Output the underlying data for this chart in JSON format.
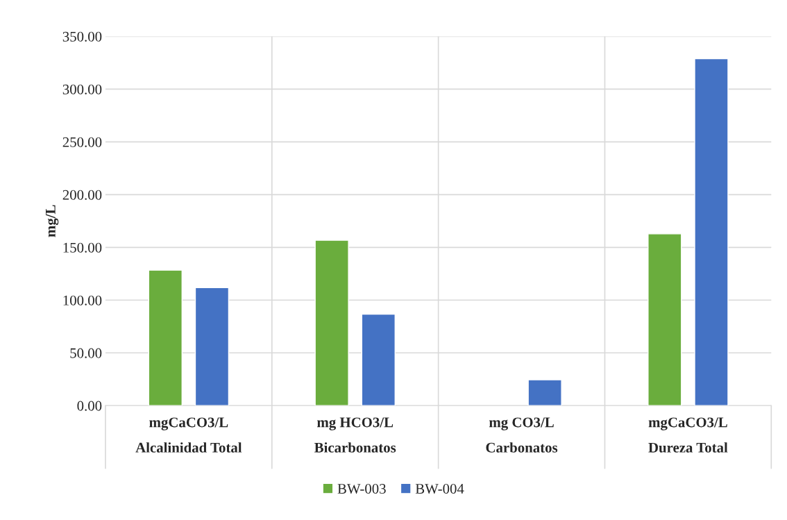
{
  "chart_data": {
    "type": "bar",
    "ylabel": "mg/L",
    "categories": [
      "mgCaCO3/L\nAlcalinidad Total",
      "mg HCO3/L\nBicarbonatos",
      "mg CO3/L\nCarbonatos",
      "mgCaCO3/L\nDureza Total"
    ],
    "series": [
      {
        "name": "BW-003",
        "color": "#6aad3d",
        "values": [
          128.4,
          156.8,
          null,
          162.8
        ]
      },
      {
        "name": "BW-004",
        "color": "#4472c4",
        "values": [
          111.8,
          86.7,
          24.5,
          328.9
        ]
      }
    ],
    "ylim": [
      0,
      350
    ],
    "yticks": [
      {
        "value": 0,
        "label": "0.00"
      },
      {
        "value": 50,
        "label": "50.00"
      },
      {
        "value": 100,
        "label": "100.00"
      },
      {
        "value": 150,
        "label": "150.00"
      },
      {
        "value": 200,
        "label": "200.00"
      },
      {
        "value": 250,
        "label": "250.00"
      },
      {
        "value": 300,
        "label": "300.00"
      },
      {
        "value": 350,
        "label": "350.00"
      }
    ],
    "grid": true,
    "legend": "bottom"
  }
}
